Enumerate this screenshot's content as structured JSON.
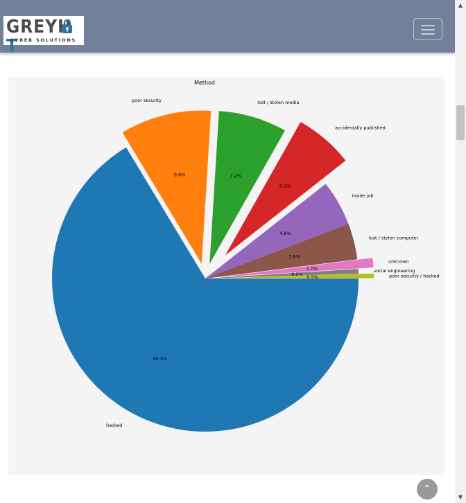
{
  "navbar": {
    "logo_word_main": "GREYH",
    "logo_word_accent": "T",
    "logo_tagline": "CYBER SOLUTIONS",
    "menu_icon": "hamburger-icon",
    "background": "#728199"
  },
  "back_to_top": {
    "icon": "chevron-up-icon",
    "symbol": "⌃"
  },
  "chart_data": {
    "type": "pie",
    "title": "Method",
    "slices": [
      {
        "label": "hacked",
        "value": 66.3,
        "pct_label": "66.3%",
        "color": "#1f77b4",
        "explode": 0.0
      },
      {
        "label": "poor security",
        "value": 9.6,
        "pct_label": "9.6%",
        "color": "#ff7f0e",
        "explode": 0.1
      },
      {
        "label": "lost / stolen media",
        "value": 7.2,
        "pct_label": "7.2%",
        "color": "#2ca02c",
        "explode": 0.1
      },
      {
        "label": "accidentally published",
        "value": 6.2,
        "pct_label": "6.2%",
        "color": "#d62728",
        "explode": 0.2
      },
      {
        "label": "inside job",
        "value": 4.8,
        "pct_label": "4.8%",
        "color": "#9467bd",
        "explode": 0.0
      },
      {
        "label": "lost / stolen computer",
        "value": 3.8,
        "pct_label": "3.8%",
        "color": "#8c564b",
        "explode": 0.0
      },
      {
        "label": "unknown",
        "value": 1.0,
        "pct_label": "1.0%",
        "color": "#e377c2",
        "explode": 0.1
      },
      {
        "label": "social engineering",
        "value": 0.5,
        "pct_label": "0.5%",
        "color": "#7f7f7f",
        "explode": 0.0
      },
      {
        "label": "poor security / hacked",
        "value": 0.5,
        "pct_label": "0.5%",
        "color": "#bcbd22",
        "explode": 0.1
      }
    ],
    "start_angle_deg": 0,
    "direction": "clockwise",
    "legend": "none",
    "background": "#f4f4f4"
  }
}
